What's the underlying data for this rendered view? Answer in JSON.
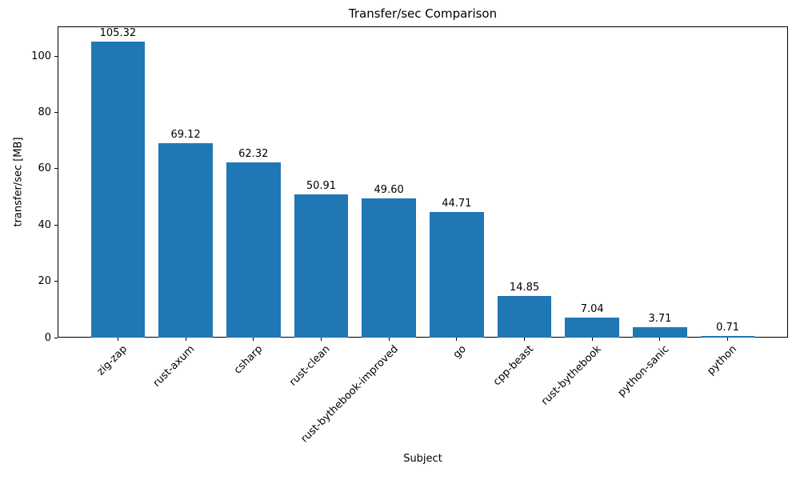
{
  "chart_data": {
    "type": "bar",
    "title": "Transfer/sec Comparison",
    "xlabel": "Subject",
    "ylabel": "transfer/sec [MB]",
    "categories": [
      "zig-zap",
      "rust-axum",
      "csharp",
      "rust-clean",
      "rust-bythebook-improved",
      "go",
      "cpp-beast",
      "rust-bythebook",
      "python-sanic",
      "python"
    ],
    "values": [
      105.32,
      69.12,
      62.32,
      50.91,
      49.6,
      44.71,
      14.85,
      7.04,
      3.71,
      0.71
    ],
    "value_labels": [
      "105.32",
      "69.12",
      "62.32",
      "50.91",
      "49.60",
      "44.71",
      "14.85",
      "7.04",
      "3.71",
      "0.71"
    ],
    "yticks": [
      0,
      20,
      40,
      60,
      80,
      100
    ],
    "ylim": [
      0,
      110.6
    ],
    "bar_color": "#1f77b4",
    "grid": false,
    "legend": null
  }
}
